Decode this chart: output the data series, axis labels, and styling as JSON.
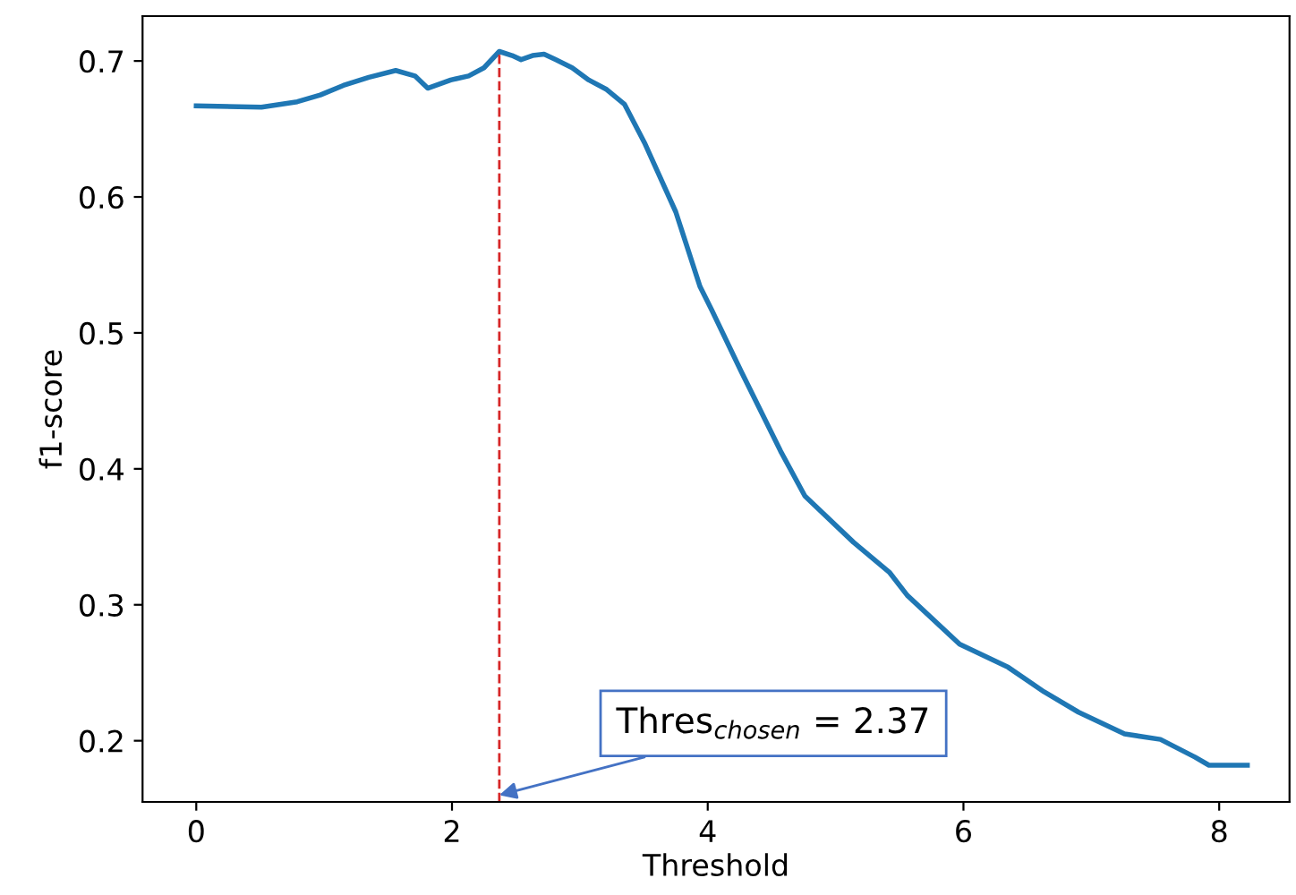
{
  "chart_data": {
    "type": "line",
    "xlabel": "Threshold",
    "ylabel": "f1-score",
    "x": [
      0,
      0.51,
      0.79,
      0.97,
      1.15,
      1.35,
      1.56,
      1.71,
      1.81,
      1.99,
      2.13,
      2.25,
      2.37,
      2.47,
      2.54,
      2.63,
      2.72,
      2.81,
      2.94,
      3.07,
      3.21,
      3.35,
      3.51,
      3.75,
      3.94,
      4.03,
      4.26,
      4.57,
      4.76,
      5.14,
      5.42,
      5.56,
      5.97,
      6.35,
      6.63,
      6.9,
      7.26,
      7.54,
      7.81,
      7.92,
      8.22
    ],
    "series": [
      {
        "color": "#1f77b4",
        "values": [
          0.667,
          0.666,
          0.67,
          0.675,
          0.682,
          0.688,
          0.693,
          0.689,
          0.68,
          0.686,
          0.689,
          0.695,
          0.707,
          0.704,
          0.701,
          0.704,
          0.705,
          0.701,
          0.695,
          0.686,
          0.679,
          0.668,
          0.639,
          0.589,
          0.534,
          0.517,
          0.472,
          0.413,
          0.38,
          0.346,
          0.324,
          0.307,
          0.271,
          0.254,
          0.236,
          0.221,
          0.205,
          0.201,
          0.188,
          0.182,
          0.182
        ]
      }
    ],
    "xlim": [
      -0.42,
      8.55
    ],
    "ylim": [
      0.155,
      0.733
    ],
    "xticks": [
      0,
      2,
      4,
      6,
      8
    ],
    "yticks": [
      0.2,
      0.3,
      0.4,
      0.5,
      0.6,
      0.7
    ],
    "ref_lines": [
      {
        "axis": "x",
        "value": 2.37,
        "color": "#d62728",
        "line_style": "dashed"
      }
    ],
    "annotations": [
      {
        "text": "Thres$_{chosen}$ = 2.37",
        "x": 2.37,
        "y": 0.16
      }
    ],
    "grid": false,
    "legend": false
  }
}
